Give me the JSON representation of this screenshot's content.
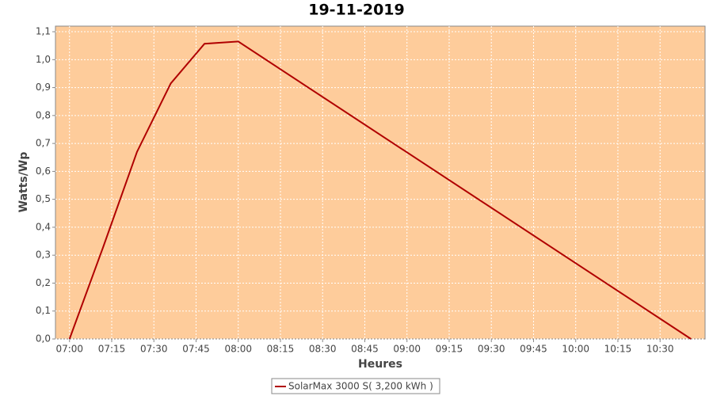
{
  "chart_data": {
    "type": "line",
    "title": "19-11-2019",
    "x_label": "Heures",
    "y_label": "Watts/Wp",
    "x": [
      "07:00",
      "07:12",
      "07:24",
      "07:36",
      "07:48",
      "08:00",
      "10:41"
    ],
    "series": [
      {
        "name": "SolarMax 3000 S( 3,200 kWh )",
        "color": "#b00000",
        "values": [
          0,
          0.33,
          0.67,
          0.915,
          1.057,
          1.065,
          0
        ]
      }
    ],
    "xlim": [
      "06:55",
      "10:46"
    ],
    "xticks": [
      "07:00",
      "07:15",
      "07:30",
      "07:45",
      "08:00",
      "08:15",
      "08:30",
      "08:45",
      "09:00",
      "09:15",
      "09:30",
      "09:45",
      "10:00",
      "10:15",
      "10:30"
    ],
    "ylim": [
      0,
      1.12
    ],
    "yticks": [
      {
        "value": 0,
        "label": "0,0"
      },
      {
        "value": 0.1,
        "label": "0,1"
      },
      {
        "value": 0.2,
        "label": "0,2"
      },
      {
        "value": 0.3,
        "label": "0,3"
      },
      {
        "value": 0.4,
        "label": "0,4"
      },
      {
        "value": 0.5,
        "label": "0,5"
      },
      {
        "value": 0.6,
        "label": "0,6"
      },
      {
        "value": 0.7,
        "label": "0,7"
      },
      {
        "value": 0.8,
        "label": "0,8"
      },
      {
        "value": 0.9,
        "label": "0,9"
      },
      {
        "value": 1.0,
        "label": "1,0"
      },
      {
        "value": 1.1,
        "label": "1,1"
      }
    ],
    "grid": true,
    "plot_background": "#fecc9b",
    "legend": "bottom"
  }
}
